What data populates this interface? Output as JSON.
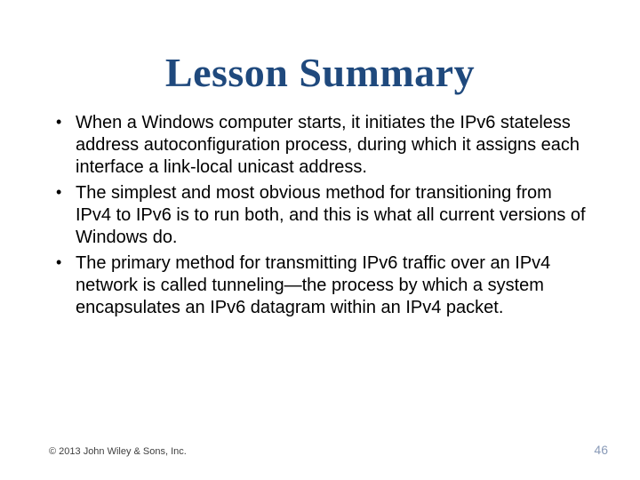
{
  "slide": {
    "title": "Lesson Summary",
    "title_color": "#1f497d",
    "title_fontsize": 46,
    "bullets": [
      "When a Windows computer starts, it initiates the IPv6 stateless address autoconfiguration process, during which it assigns each interface a link-local unicast address.",
      "The simplest and most obvious method for transitioning from IPv4 to IPv6 is to run both, and this is what all current versions of Windows do.",
      "The primary method for transmitting IPv6 traffic over an IPv4 network is called tunneling—the process by which a system encapsulates an IPv6 datagram within an IPv4 packet."
    ],
    "bullet_fontsize": 20,
    "bullet_color": "#000000",
    "copyright": "© 2013 John Wiley & Sons, Inc.",
    "page_number": "46",
    "pagenum_color": "#8a9bb8",
    "background_color": "#ffffff"
  }
}
